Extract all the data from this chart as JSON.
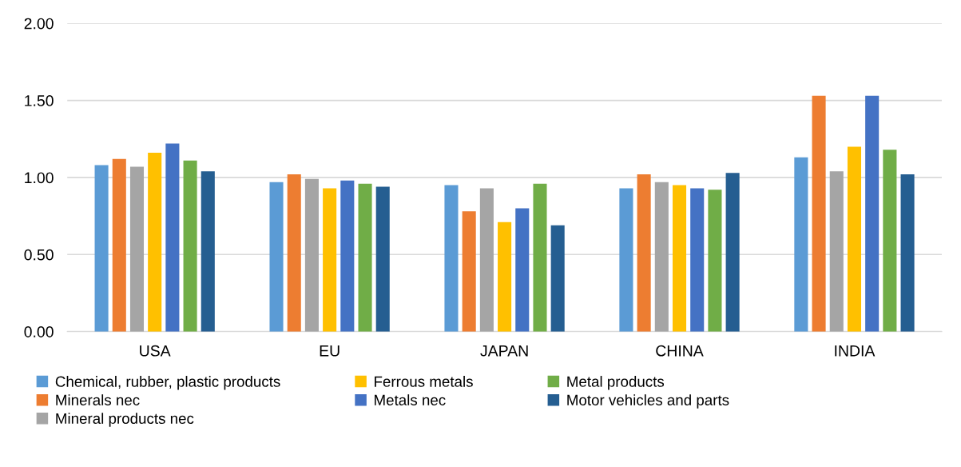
{
  "chart_data": {
    "type": "bar",
    "categories": [
      "USA",
      "EU",
      "JAPAN",
      "CHINA",
      "INDIA"
    ],
    "series": [
      {
        "name": "Chemical, rubber, plastic products",
        "color": "#5b9bd5",
        "values": [
          1.08,
          0.97,
          0.95,
          0.93,
          1.13
        ]
      },
      {
        "name": "Minerals nec",
        "color": "#ed7d31",
        "values": [
          1.12,
          1.02,
          0.78,
          1.02,
          1.53
        ]
      },
      {
        "name": "Mineral products nec",
        "color": "#a5a5a5",
        "values": [
          1.07,
          0.99,
          0.93,
          0.97,
          1.04
        ]
      },
      {
        "name": "Ferrous metals",
        "color": "#ffc000",
        "values": [
          1.16,
          0.93,
          0.71,
          0.95,
          1.2
        ]
      },
      {
        "name": "Metals nec",
        "color": "#4472c4",
        "values": [
          1.22,
          0.98,
          0.8,
          0.93,
          1.53
        ]
      },
      {
        "name": "Metal products",
        "color": "#70ad47",
        "values": [
          1.11,
          0.96,
          0.96,
          0.92,
          1.18
        ]
      },
      {
        "name": "Motor vehicles and parts",
        "color": "#255e91",
        "values": [
          1.04,
          0.94,
          0.69,
          1.03,
          1.02
        ]
      }
    ],
    "ylim": [
      0,
      2
    ],
    "yticks": [
      {
        "value": 0,
        "label": "0.00"
      },
      {
        "value": 0.5,
        "label": "0.50"
      },
      {
        "value": 1,
        "label": "1.00"
      },
      {
        "value": 1.5,
        "label": "1.50"
      },
      {
        "value": 2,
        "label": "2.00"
      }
    ],
    "grid": "y",
    "legend": "bottom"
  }
}
